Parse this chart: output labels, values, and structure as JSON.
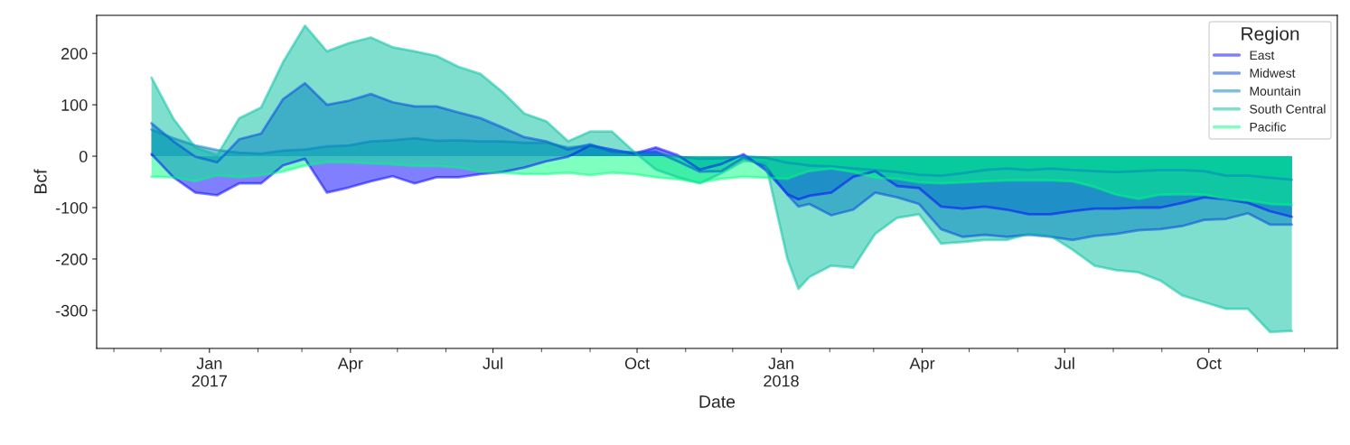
{
  "chart_data": {
    "type": "area",
    "xlabel": "Date",
    "ylabel": "Bcf",
    "legend_title": "Region",
    "legend": "top right",
    "grid": false,
    "x": [
      "2016-11-25",
      "2016-12-09",
      "2016-12-23",
      "2017-01-06",
      "2017-01-20",
      "2017-02-03",
      "2017-02-17",
      "2017-03-03",
      "2017-03-17",
      "2017-03-31",
      "2017-04-14",
      "2017-04-28",
      "2017-05-12",
      "2017-05-26",
      "2017-06-09",
      "2017-06-23",
      "2017-07-07",
      "2017-07-21",
      "2017-08-04",
      "2017-08-18",
      "2017-09-01",
      "2017-09-15",
      "2017-09-29",
      "2017-10-13",
      "2017-10-27",
      "2017-11-10",
      "2017-11-24",
      "2017-12-08",
      "2017-12-22",
      "2018-01-05",
      "2018-01-12",
      "2018-01-19",
      "2018-02-02",
      "2018-02-16",
      "2018-03-02",
      "2018-03-16",
      "2018-03-30",
      "2018-04-13",
      "2018-04-27",
      "2018-05-11",
      "2018-05-25",
      "2018-06-08",
      "2018-06-22",
      "2018-07-06",
      "2018-07-20",
      "2018-08-03",
      "2018-08-17",
      "2018-08-31",
      "2018-09-14",
      "2018-09-28",
      "2018-10-12",
      "2018-10-26",
      "2018-11-09",
      "2018-11-23"
    ],
    "series": [
      {
        "name": "East",
        "color": "#0000ff",
        "values": [
          4,
          -41,
          -71,
          -76,
          -53,
          -53,
          -18,
          -5,
          -71,
          -61,
          -49,
          -39,
          -53,
          -41,
          -41,
          -35,
          -31,
          -22,
          -10,
          -1,
          21,
          13,
          5,
          17,
          2,
          -26,
          -15,
          4,
          -27,
          -74,
          -84,
          -77,
          -71,
          -40,
          -29,
          -58,
          -62,
          -98,
          -102,
          -98,
          -104,
          -113,
          -113,
          -107,
          -102,
          -102,
          -100,
          -100,
          -91,
          -80,
          -84,
          -91,
          -107,
          -118
        ]
      },
      {
        "name": "Midwest",
        "color": "#0040df",
        "values": [
          64,
          29,
          -1,
          -12,
          33,
          44,
          111,
          142,
          100,
          108,
          121,
          105,
          97,
          97,
          85,
          74,
          56,
          37,
          29,
          13,
          23,
          9,
          7,
          9,
          -10,
          -30,
          -29,
          -3,
          -20,
          -75,
          -98,
          -93,
          -115,
          -104,
          -71,
          -80,
          -93,
          -142,
          -157,
          -153,
          -157,
          -153,
          -157,
          -163,
          -155,
          -151,
          -144,
          -142,
          -136,
          -124,
          -122,
          -111,
          -133,
          -133
        ]
      },
      {
        "name": "Mountain",
        "color": "#0080bf",
        "values": [
          52,
          35,
          21,
          12,
          7,
          5,
          11,
          13,
          19,
          21,
          29,
          31,
          35,
          30,
          31,
          29,
          29,
          26,
          26,
          17,
          21,
          9,
          7,
          5,
          -1,
          -5,
          -4,
          0,
          -3,
          -13,
          -15,
          -18,
          -20,
          -24,
          -27,
          -31,
          -36,
          -38,
          -33,
          -27,
          -24,
          -27,
          -24,
          -27,
          -29,
          -31,
          -29,
          -27,
          -27,
          -29,
          -38,
          -38,
          -42,
          -46
        ]
      },
      {
        "name": "South Central",
        "color": "#00bf9f",
        "values": [
          153,
          73,
          17,
          2,
          74,
          95,
          183,
          254,
          204,
          220,
          231,
          212,
          204,
          195,
          174,
          160,
          125,
          83,
          68,
          29,
          48,
          48,
          9,
          -26,
          -41,
          -53,
          -33,
          -9,
          -13,
          -200,
          -258,
          -235,
          -213,
          -217,
          -151,
          -120,
          -113,
          -170,
          -167,
          -163,
          -163,
          -151,
          -155,
          -182,
          -213,
          -222,
          -226,
          -242,
          -271,
          -284,
          -297,
          -297,
          -342,
          -340
        ]
      },
      {
        "name": "Pacific",
        "color": "#00ff80",
        "values": [
          -40,
          -41,
          -49,
          -37,
          -41,
          -37,
          -30,
          -18,
          -12,
          -12,
          -14,
          -16,
          -19,
          -19,
          -22,
          -30,
          -32,
          -35,
          -35,
          -32,
          -37,
          -32,
          -35,
          -41,
          -45,
          -51,
          -44,
          -40,
          -42,
          -44,
          -36,
          -29,
          -24,
          -31,
          -42,
          -44,
          -51,
          -53,
          -51,
          -49,
          -47,
          -47,
          -47,
          -49,
          -60,
          -75,
          -83,
          -75,
          -74,
          -75,
          -83,
          -86,
          -93,
          -95
        ]
      }
    ],
    "xlim": [
      "2016-10-21",
      "2018-12-22"
    ],
    "xticks": [
      {
        "value": "2017-01-01",
        "label": "Jan\n2017"
      },
      {
        "value": "2017-04-01",
        "label": "Apr"
      },
      {
        "value": "2017-07-01",
        "label": "Jul"
      },
      {
        "value": "2017-10-01",
        "label": "Oct"
      },
      {
        "value": "2018-01-01",
        "label": "Jan\n2018"
      },
      {
        "value": "2018-04-01",
        "label": "Apr"
      },
      {
        "value": "2018-07-01",
        "label": "Jul"
      },
      {
        "value": "2018-10-01",
        "label": "Oct"
      }
    ],
    "ylim": [
      -374,
      274
    ],
    "yticks": [
      -300,
      -200,
      -100,
      0,
      100,
      200
    ]
  }
}
